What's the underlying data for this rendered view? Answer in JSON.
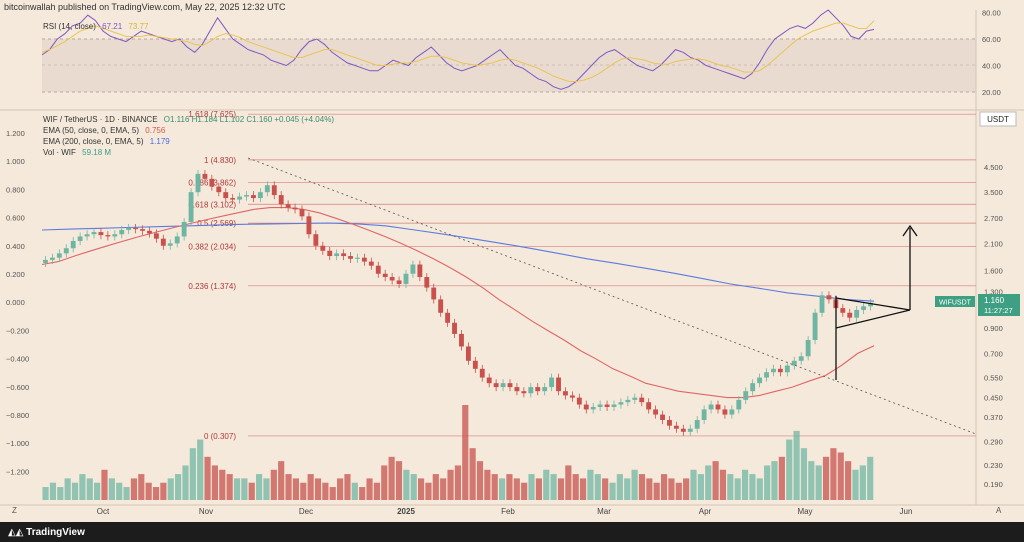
{
  "header": {
    "publisher_text": "bitcoinwallah published on TradingView.com, May 22, 2025 12:32 UTC"
  },
  "footer": {
    "brand": "TradingView",
    "left_marker": "Z",
    "right_marker": "A"
  },
  "rsi_legend": {
    "label": "RSI (14, close)",
    "value1": "67.21",
    "value2": "73.77"
  },
  "legend": {
    "symbol": "WIF / TetherUS · 1D · BINANCE",
    "ohlc": "O1.116 H1.184 L1.102 C1.160 +0.045 (+4.04%)",
    "ema50_label": "EMA (50, close, 0, EMA, 5)",
    "ema50_value": "0.756",
    "ema200_label": "EMA (200, close, 0, EMA, 5)",
    "ema200_value": "1.179",
    "vol_label": "Vol · WIF",
    "vol_value": "59.18 M"
  },
  "price_badge": {
    "symbol": "WIFUSDT",
    "price": "1.160",
    "countdown": "11:27:27"
  },
  "currency_label": "USDT",
  "colors": {
    "up": "#6fb5a3",
    "down": "#c8504d",
    "ema50": "#e06666",
    "ema200": "#5b7be0",
    "rsi": "#7e57c2",
    "rsi_ma": "#e8c24a",
    "fib_line": "#d05a5a",
    "badge": "#3f9f82"
  },
  "chart_data": [
    {
      "type": "line",
      "name": "RSI panel",
      "ylim": [
        20,
        85
      ],
      "y_ticks": [
        "80.00",
        "60.00",
        "40.00",
        "20.00"
      ],
      "series": [
        {
          "name": "RSI (14, close)",
          "values": [
            48,
            52,
            60,
            64,
            70,
            72,
            78,
            74,
            66,
            62,
            60,
            58,
            62,
            66,
            64,
            62,
            60,
            58,
            60,
            54,
            50,
            56,
            66,
            76,
            68,
            60,
            56,
            52,
            50,
            48,
            44,
            42,
            40,
            44,
            52,
            58,
            60,
            56,
            50,
            46,
            42,
            40,
            38,
            36,
            36,
            40,
            44,
            42,
            40,
            46,
            50,
            54,
            48,
            42,
            38,
            36,
            38,
            40,
            44,
            48,
            52,
            46,
            40,
            38,
            34,
            30,
            28,
            24,
            22,
            24,
            28,
            34,
            40,
            46,
            50,
            52,
            48,
            44,
            40,
            38,
            36,
            40,
            46,
            52,
            50,
            46,
            44,
            40,
            38,
            36,
            34,
            32,
            30,
            34,
            42,
            52,
            60,
            64,
            68,
            70,
            68,
            72,
            78,
            82,
            76,
            70,
            62,
            60,
            66,
            67.21
          ]
        },
        {
          "name": "RSI MA",
          "values": [
            50,
            52,
            55,
            58,
            62,
            66,
            68,
            70,
            68,
            66,
            64,
            62,
            62,
            62,
            63,
            62,
            61,
            60,
            59,
            58,
            56,
            55,
            58,
            62,
            64,
            63,
            61,
            58,
            56,
            54,
            52,
            50,
            48,
            46,
            46,
            48,
            50,
            52,
            52,
            50,
            48,
            46,
            44,
            42,
            40,
            40,
            41,
            42,
            42,
            43,
            45,
            47,
            47,
            46,
            44,
            42,
            41,
            40,
            41,
            42,
            44,
            45,
            44,
            42,
            40,
            38,
            35,
            32,
            30,
            28,
            28,
            29,
            31,
            34,
            38,
            42,
            45,
            46,
            45,
            44,
            42,
            41,
            41,
            43,
            44,
            45,
            45,
            44,
            42,
            40,
            39,
            37,
            35,
            35,
            36,
            40,
            45,
            50,
            55,
            60,
            63,
            66,
            68,
            70,
            72,
            72,
            70,
            68,
            68,
            73.77
          ]
        }
      ]
    },
    {
      "type": "candlestick",
      "name": "WIF / TetherUS 1D",
      "y_scale": "log",
      "ylim": [
        0.17,
        6.0
      ],
      "x_ticks": [
        "Oct",
        "Nov",
        "Dec",
        "2025",
        "Feb",
        "Mar",
        "Apr",
        "May",
        "Jun"
      ],
      "y_ticks_price": [
        "4.500",
        "3.500",
        "2.700",
        "2.100",
        "1.600",
        "1.300",
        "1.160",
        "0.900",
        "0.700",
        "0.550",
        "0.450",
        "0.370",
        "0.290",
        "0.230",
        "0.190"
      ],
      "y_ticks_left": [
        "1.200",
        "1.000",
        "0.800",
        "0.600",
        "0.400",
        "0.200",
        "0.000",
        "−0.200",
        "−0.400",
        "−0.600",
        "−0.800",
        "−1.000",
        "−1.200"
      ],
      "fib_levels": [
        {
          "ratio": "1.618",
          "price": 7.625,
          "label": "1.618 (7.625)"
        },
        {
          "ratio": "1",
          "price": 4.83,
          "label": "1 (4.830)"
        },
        {
          "ratio": "0.786",
          "price": 3.862,
          "label": "0.786 (3.862)"
        },
        {
          "ratio": "0.618",
          "price": 3.102,
          "label": "0.618 (3.102)"
        },
        {
          "ratio": "0.5",
          "price": 2.569,
          "label": "0.5 (2.569)"
        },
        {
          "ratio": "0.382",
          "price": 2.034,
          "label": "0.382 (2.034)"
        },
        {
          "ratio": "0.236",
          "price": 1.374,
          "label": "0.236 (1.374)"
        },
        {
          "ratio": "0",
          "price": 0.307,
          "label": "0 (0.307)"
        }
      ],
      "close_series": [
        1.78,
        1.82,
        1.9,
        2.0,
        2.15,
        2.25,
        2.3,
        2.35,
        2.28,
        2.25,
        2.3,
        2.4,
        2.45,
        2.42,
        2.38,
        2.32,
        2.2,
        2.05,
        2.1,
        2.25,
        2.6,
        3.5,
        4.2,
        4.0,
        3.7,
        3.5,
        3.3,
        3.25,
        3.35,
        3.4,
        3.3,
        3.5,
        3.75,
        3.4,
        3.1,
        3.0,
        2.95,
        2.75,
        2.3,
        2.05,
        1.95,
        1.85,
        1.9,
        1.85,
        1.8,
        1.82,
        1.75,
        1.68,
        1.55,
        1.5,
        1.45,
        1.4,
        1.55,
        1.7,
        1.5,
        1.35,
        1.2,
        1.05,
        0.95,
        0.85,
        0.75,
        0.65,
        0.6,
        0.55,
        0.52,
        0.5,
        0.52,
        0.5,
        0.48,
        0.47,
        0.5,
        0.48,
        0.5,
        0.55,
        0.48,
        0.46,
        0.45,
        0.42,
        0.4,
        0.41,
        0.42,
        0.41,
        0.42,
        0.43,
        0.44,
        0.45,
        0.43,
        0.4,
        0.38,
        0.36,
        0.34,
        0.33,
        0.32,
        0.33,
        0.36,
        0.4,
        0.42,
        0.4,
        0.38,
        0.4,
        0.44,
        0.48,
        0.52,
        0.55,
        0.58,
        0.6,
        0.58,
        0.62,
        0.65,
        0.68,
        0.8,
        1.05,
        1.25,
        1.2,
        1.1,
        1.05,
        1.0,
        1.08,
        1.12,
        1.16
      ],
      "ema50": [
        1.7,
        1.75,
        1.85,
        1.95,
        2.05,
        2.15,
        2.25,
        2.35,
        2.45,
        2.55,
        2.65,
        2.75,
        2.85,
        2.95,
        3.0,
        3.0,
        2.95,
        2.85,
        2.7,
        2.55,
        2.4,
        2.25,
        2.1,
        1.95,
        1.8,
        1.65,
        1.5,
        1.35,
        1.2,
        1.08,
        0.97,
        0.88,
        0.8,
        0.72,
        0.66,
        0.6,
        0.56,
        0.52,
        0.5,
        0.48,
        0.47,
        0.46,
        0.45,
        0.45,
        0.46,
        0.48,
        0.5,
        0.53,
        0.56,
        0.62,
        0.7,
        0.756
      ],
      "ema200": [
        2.4,
        2.42,
        2.44,
        2.46,
        2.48,
        2.5,
        2.52,
        2.54,
        2.55,
        2.56,
        2.57,
        2.55,
        2.5,
        2.4,
        2.3,
        2.2,
        2.1,
        2.0,
        1.9,
        1.8,
        1.72,
        1.64,
        1.56,
        1.48,
        1.4,
        1.34,
        1.28,
        1.24,
        1.2,
        1.179
      ],
      "volume": [
        3,
        4,
        3,
        5,
        4,
        6,
        5,
        4,
        7,
        5,
        4,
        3,
        5,
        6,
        4,
        3,
        4,
        5,
        6,
        8,
        12,
        14,
        10,
        8,
        7,
        6,
        5,
        5,
        4,
        6,
        5,
        7,
        9,
        6,
        5,
        4,
        6,
        5,
        4,
        3,
        5,
        6,
        4,
        3,
        5,
        4,
        8,
        10,
        9,
        7,
        6,
        5,
        4,
        6,
        5,
        7,
        8,
        22,
        12,
        9,
        7,
        6,
        5,
        6,
        5,
        4,
        6,
        5,
        7,
        6,
        5,
        8,
        6,
        5,
        7,
        6,
        5,
        4,
        6,
        5,
        7,
        6,
        5,
        4,
        6,
        5,
        4,
        5,
        7,
        6,
        8,
        9,
        7,
        6,
        5,
        7,
        6,
        5,
        8,
        9,
        10,
        14,
        16,
        12,
        9,
        8,
        10,
        12,
        11,
        9,
        7,
        8,
        10
      ]
    }
  ]
}
